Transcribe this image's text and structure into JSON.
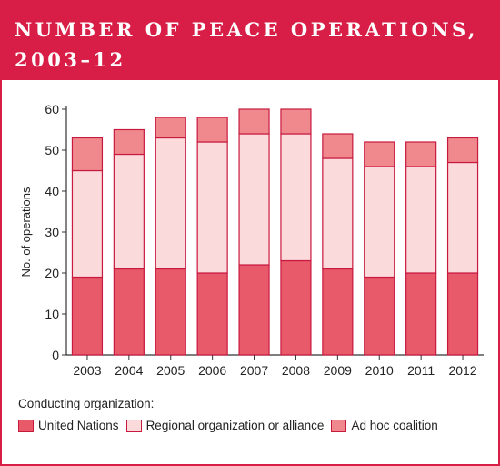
{
  "header": {
    "title_line1": "NUMBER OF PEACE OPERATIONS,",
    "title_line2": "2003–12"
  },
  "colors": {
    "header_bg": "#d81e47",
    "series_un": "#e8596a",
    "series_regional": "#fbdadc",
    "series_adhoc": "#f0898e",
    "outline": "#c8193f"
  },
  "legend": {
    "heading": "Conducting organization:",
    "placement": "bottom"
  },
  "chart_data": {
    "type": "bar",
    "stacked": true,
    "categories": [
      "2003",
      "2004",
      "2005",
      "2006",
      "2007",
      "2008",
      "2009",
      "2010",
      "2011",
      "2012"
    ],
    "series": [
      {
        "name": "United Nations",
        "values": [
          19,
          21,
          21,
          20,
          22,
          23,
          21,
          19,
          20,
          20
        ]
      },
      {
        "name": "Regional organization or alliance",
        "values": [
          26,
          28,
          32,
          32,
          32,
          31,
          27,
          27,
          26,
          27
        ]
      },
      {
        "name": "Ad hoc coalition",
        "values": [
          8,
          6,
          5,
          6,
          6,
          6,
          6,
          6,
          6,
          6
        ]
      }
    ],
    "ylabel": "No. of operations",
    "xlabel": "",
    "ylim": [
      0,
      60
    ],
    "yticks": [
      0,
      10,
      20,
      30,
      40,
      50,
      60
    ],
    "grid": false
  }
}
